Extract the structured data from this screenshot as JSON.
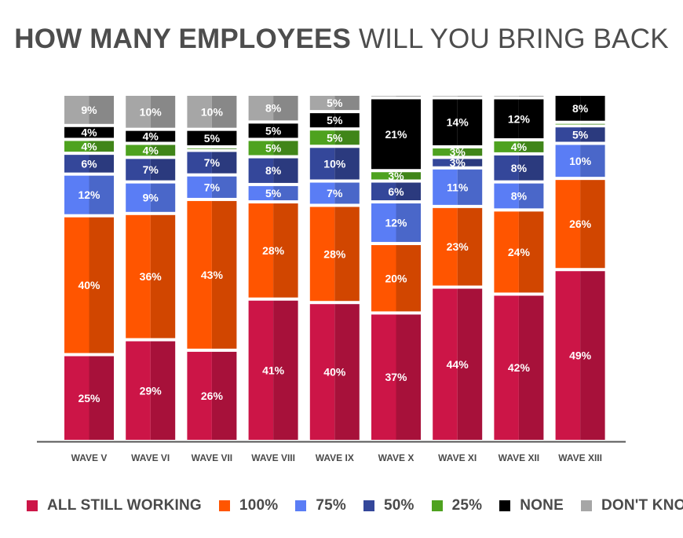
{
  "title_bold": "HOW MANY EMPLOYEES",
  "title_rest": " WILL YOU BRING BACK",
  "chart_data": {
    "type": "bar",
    "stacked": true,
    "normalized_percent": true,
    "title": "HOW MANY EMPLOYEES WILL YOU BRING BACK",
    "categories": [
      "WAVE V",
      "WAVE VI",
      "WAVE VII",
      "WAVE VIII",
      "WAVE IX",
      "WAVE X",
      "WAVE XI",
      "WAVE XII",
      "WAVE XIII"
    ],
    "legend_position": "bottom",
    "grid": false,
    "series": [
      {
        "name": "ALL STILL WORKING",
        "color": "#cc1547",
        "values": [
          25,
          29,
          26,
          41,
          40,
          37,
          44,
          42,
          49
        ]
      },
      {
        "name": "100%",
        "color": "#ff5500",
        "values": [
          40,
          36,
          43,
          28,
          28,
          20,
          23,
          24,
          26
        ]
      },
      {
        "name": "75%",
        "color": "#5a7df5",
        "values": [
          12,
          9,
          7,
          5,
          7,
          12,
          11,
          8,
          10
        ]
      },
      {
        "name": "50%",
        "color": "#34479a",
        "values": [
          6,
          7,
          7,
          8,
          10,
          6,
          3,
          8,
          5
        ]
      },
      {
        "name": "25%",
        "color": "#4ea21f",
        "values": [
          4,
          4,
          1,
          5,
          5,
          3,
          3,
          4,
          1
        ]
      },
      {
        "name": "NONE",
        "color": "#000000",
        "values": [
          4,
          4,
          5,
          5,
          5,
          21,
          14,
          12,
          8
        ]
      },
      {
        "name": "DON'T KNOW",
        "color": "#a6a6a6",
        "values": [
          9,
          10,
          10,
          8,
          5,
          1,
          1,
          1,
          0
        ]
      }
    ],
    "labels": [
      [
        "25%",
        "29%",
        "26%",
        "41%",
        "40%",
        "37%",
        "44%",
        "42%",
        "49%"
      ],
      [
        "40%",
        "36%",
        "43%",
        "28%",
        "28%",
        "20%",
        "23%",
        "24%",
        "26%"
      ],
      [
        "12%",
        "9%",
        "7%",
        "5%",
        "7%",
        "12%",
        "11%",
        "8%",
        "10%"
      ],
      [
        "6%",
        "7%",
        "7%",
        "8%",
        "10%",
        "6%",
        "3%",
        "8%",
        "5%"
      ],
      [
        "4%",
        "4%",
        "",
        "5%",
        "5%",
        "3%",
        "3%",
        "4%",
        ""
      ],
      [
        "4%",
        "4%",
        "5%",
        "5%",
        "5%",
        "21%",
        "14%",
        "12%",
        "8%"
      ],
      [
        "9%",
        "10%",
        "10%",
        "8%",
        "5%",
        "",
        "",
        "",
        ""
      ]
    ]
  }
}
